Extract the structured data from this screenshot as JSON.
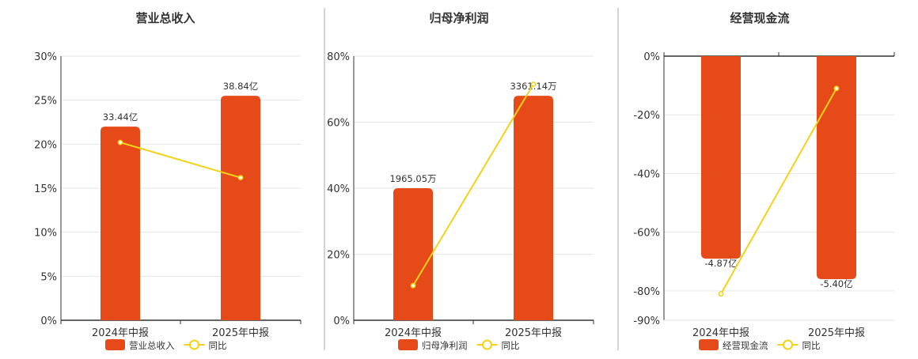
{
  "chart_data": [
    {
      "type": "bar",
      "title": "营业总收入",
      "categories": [
        "2024年中报",
        "2025年中报"
      ],
      "series": [
        {
          "name": "营业总收入",
          "kind": "bar",
          "values": [
            33.44,
            38.84
          ],
          "value_labels": [
            "33.44亿",
            "38.84亿"
          ],
          "pct_values": [
            22,
            25.5
          ]
        },
        {
          "name": "同比",
          "kind": "line",
          "values": [
            20.2,
            16.2
          ]
        }
      ],
      "y_ticks": [
        "30%",
        "25%",
        "20%",
        "15%",
        "10%",
        "5%",
        "0%"
      ],
      "ylim": [
        0,
        30
      ],
      "grid": true,
      "legend_position": "bottom"
    },
    {
      "type": "bar",
      "title": "归母净利润",
      "categories": [
        "2024年中报",
        "2025年中报"
      ],
      "series": [
        {
          "name": "归母净利润",
          "kind": "bar",
          "values": [
            1965.05,
            3361.14
          ],
          "value_labels": [
            "1965.05万",
            "3361.14万"
          ],
          "pct_values": [
            40,
            68
          ]
        },
        {
          "name": "同比",
          "kind": "line",
          "values": [
            10.5,
            71.5
          ]
        }
      ],
      "y_ticks": [
        "80%",
        "60%",
        "40%",
        "20%",
        "0%"
      ],
      "ylim": [
        0,
        80
      ],
      "grid": true,
      "legend_position": "bottom"
    },
    {
      "type": "bar",
      "title": "经营现金流",
      "categories": [
        "2024年中报",
        "2025年中报"
      ],
      "series": [
        {
          "name": "经营现金流",
          "kind": "bar",
          "values": [
            -4.87,
            -5.4
          ],
          "value_labels": [
            "-4.87亿",
            "-5.40亿"
          ],
          "pct_values": [
            -69,
            -76
          ]
        },
        {
          "name": "同比",
          "kind": "line",
          "values": [
            -81,
            -11
          ]
        }
      ],
      "y_ticks": [
        "0%",
        "-20%",
        "-40%",
        "-60%",
        "-80%",
        "-90%"
      ],
      "ylim": [
        -90,
        0
      ],
      "grid": true,
      "legend_position": "bottom"
    }
  ],
  "colors": {
    "bar": "#e64a19",
    "line": "#f2d318",
    "axis": "#333333",
    "grid": "#e6e6e6",
    "separator": "#aaaaaa"
  }
}
